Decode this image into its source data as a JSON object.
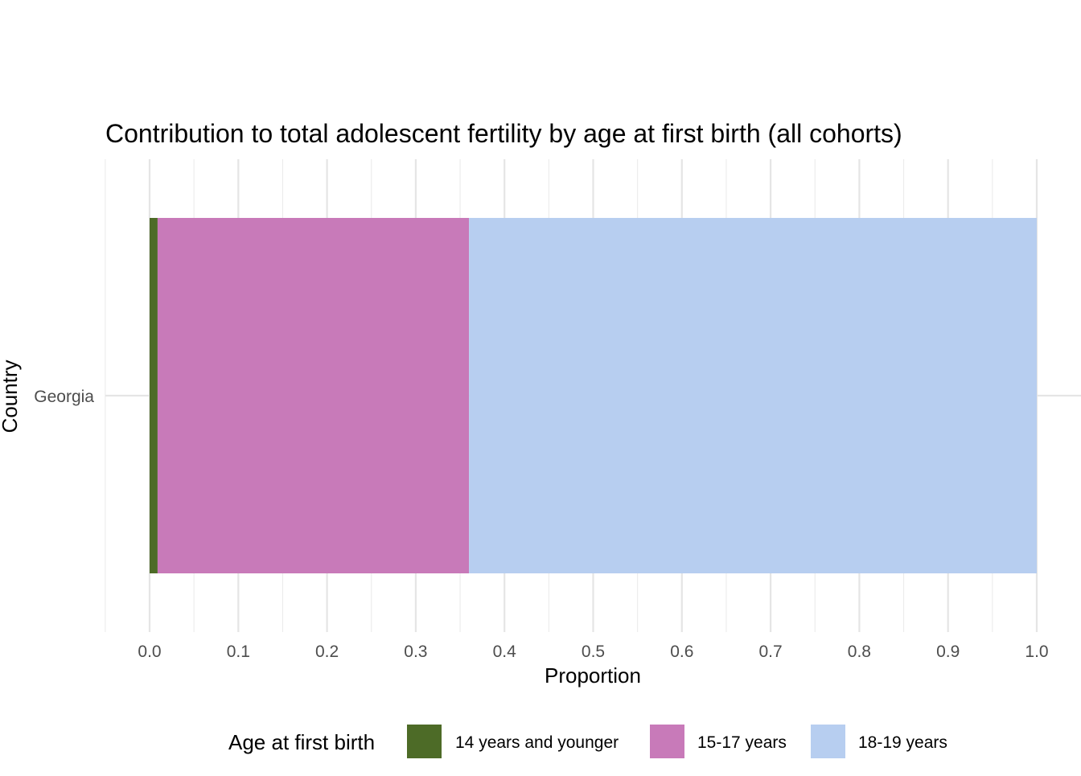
{
  "chart_data": {
    "type": "bar",
    "orientation": "horizontal",
    "stacked": true,
    "title": "Contribution to total adolescent fertility by age at first birth (all cohorts)",
    "xlabel": "Proportion",
    "ylabel": "Country",
    "categories": [
      "Georgia"
    ],
    "xlim": [
      -0.05,
      1.05
    ],
    "x_ticks": [
      "0.0",
      "0.1",
      "0.2",
      "0.3",
      "0.4",
      "0.5",
      "0.6",
      "0.7",
      "0.8",
      "0.9",
      "1.0"
    ],
    "grid": true,
    "legend": {
      "title": "Age at first birth",
      "position": "bottom"
    },
    "series": [
      {
        "name": "14 years and younger",
        "color": "#4d6b27",
        "values": [
          0.009
        ]
      },
      {
        "name": "15-17 years",
        "color": "#c87ab9",
        "values": [
          0.351
        ]
      },
      {
        "name": "18-19 years",
        "color": "#b7cef0",
        "values": [
          0.64
        ]
      }
    ]
  }
}
